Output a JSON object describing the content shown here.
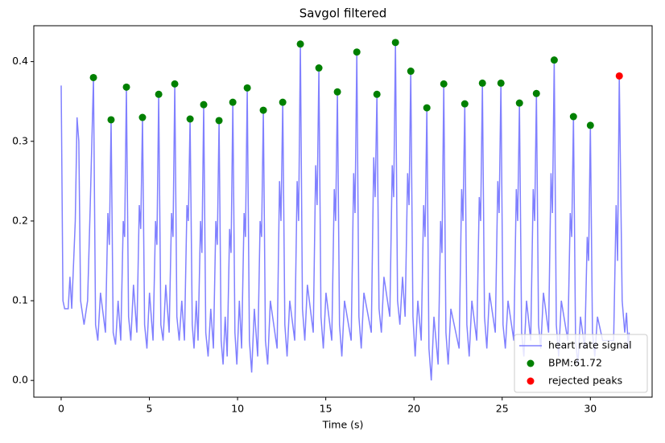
{
  "chart_data": {
    "type": "line",
    "title": "Savgol filtered",
    "xlabel": "Time (s)",
    "xlim": [
      -1.55,
      33.5
    ],
    "ylim": [
      -0.021,
      0.445
    ],
    "xticks": [
      0,
      5,
      10,
      15,
      20,
      25,
      30
    ],
    "yticks": [
      {
        "value": 0,
        "label": "0.0"
      },
      0.1,
      0.2,
      0.3,
      0.4
    ],
    "legend": "lower right",
    "series": [
      {
        "name": "heart rate signal",
        "type": "line",
        "color": "#8080ff",
        "x": [
          0,
          0.1,
          0.2,
          0.4,
          0.5,
          0.6,
          0.8,
          0.9,
          1.0,
          1.1,
          1.3,
          1.5,
          1.65,
          1.83,
          1.95,
          2.08,
          2.23,
          2.51,
          2.65,
          2.73,
          2.83,
          2.95,
          3.08,
          3.23,
          3.38,
          3.52,
          3.6,
          3.7,
          3.82,
          3.95,
          4.1,
          4.29,
          4.43,
          4.51,
          4.61,
          4.73,
          4.86,
          5.01,
          5.21,
          5.35,
          5.43,
          5.53,
          5.65,
          5.78,
          5.93,
          6.12,
          6.26,
          6.34,
          6.44,
          6.56,
          6.69,
          6.84,
          6.99,
          7.13,
          7.21,
          7.31,
          7.43,
          7.53,
          7.66,
          7.76,
          7.9,
          7.98,
          8.08,
          8.2,
          8.33,
          8.48,
          8.63,
          8.77,
          8.85,
          8.95,
          9.07,
          9.18,
          9.3,
          9.41,
          9.55,
          9.63,
          9.73,
          9.85,
          9.96,
          10.1,
          10.23,
          10.37,
          10.45,
          10.55,
          10.67,
          10.8,
          10.95,
          11.14,
          11.28,
          11.36,
          11.46,
          11.58,
          11.71,
          11.86,
          12.24,
          12.38,
          12.46,
          12.56,
          12.68,
          12.81,
          12.96,
          13.24,
          13.38,
          13.46,
          13.56,
          13.68,
          13.81,
          13.96,
          14.29,
          14.43,
          14.51,
          14.61,
          14.73,
          14.86,
          15.01,
          15.34,
          15.48,
          15.56,
          15.66,
          15.78,
          15.91,
          16.06,
          16.44,
          16.58,
          16.66,
          16.76,
          16.88,
          17.01,
          17.16,
          17.58,
          17.72,
          17.8,
          17.9,
          18.02,
          18.15,
          18.3,
          18.63,
          18.77,
          18.85,
          18.95,
          19.07,
          19.2,
          19.35,
          19.5,
          19.64,
          19.72,
          19.82,
          19.94,
          20.07,
          20.22,
          20.41,
          20.55,
          20.63,
          20.73,
          20.85,
          20.98,
          21.13,
          21.37,
          21.51,
          21.59,
          21.69,
          21.81,
          21.94,
          22.09,
          22.56,
          22.7,
          22.78,
          22.88,
          23.0,
          23.13,
          23.28,
          23.56,
          23.7,
          23.78,
          23.88,
          24.0,
          24.13,
          24.28,
          24.61,
          24.75,
          24.83,
          24.93,
          25.05,
          25.18,
          25.33,
          25.66,
          25.8,
          25.88,
          25.98,
          26.1,
          26.23,
          26.38,
          26.62,
          26.76,
          26.84,
          26.94,
          27.06,
          27.19,
          27.34,
          27.63,
          27.77,
          27.85,
          27.95,
          28.07,
          28.2,
          28.35,
          28.72,
          28.86,
          28.94,
          29.04,
          29.16,
          29.29,
          29.44,
          29.68,
          29.82,
          29.9,
          30.0,
          30.12,
          30.25,
          30.4,
          30.7,
          31.32,
          31.46,
          31.54,
          31.64,
          31.8,
          31.95,
          32.05,
          32.15,
          32.2
        ],
        "values": [
          0.37,
          0.1,
          0.09,
          0.09,
          0.13,
          0.09,
          0.2,
          0.33,
          0.3,
          0.1,
          0.07,
          0.1,
          0.22,
          0.38,
          0.07,
          0.05,
          0.11,
          0.06,
          0.21,
          0.17,
          0.327,
          0.06,
          0.045,
          0.1,
          0.05,
          0.2,
          0.18,
          0.368,
          0.08,
          0.05,
          0.12,
          0.06,
          0.22,
          0.19,
          0.33,
          0.07,
          0.04,
          0.11,
          0.05,
          0.2,
          0.17,
          0.359,
          0.07,
          0.05,
          0.12,
          0.06,
          0.21,
          0.18,
          0.372,
          0.08,
          0.05,
          0.1,
          0.05,
          0.22,
          0.2,
          0.328,
          0.07,
          0.04,
          0.1,
          0.05,
          0.2,
          0.16,
          0.346,
          0.06,
          0.03,
          0.09,
          0.04,
          0.2,
          0.17,
          0.326,
          0.05,
          0.02,
          0.08,
          0.03,
          0.19,
          0.16,
          0.349,
          0.06,
          0.02,
          0.1,
          0.04,
          0.21,
          0.18,
          0.367,
          0.05,
          0.01,
          0.09,
          0.03,
          0.2,
          0.18,
          0.339,
          0.05,
          0.02,
          0.1,
          0.04,
          0.25,
          0.2,
          0.349,
          0.07,
          0.03,
          0.1,
          0.05,
          0.25,
          0.2,
          0.422,
          0.09,
          0.05,
          0.12,
          0.06,
          0.27,
          0.22,
          0.392,
          0.08,
          0.04,
          0.11,
          0.05,
          0.24,
          0.2,
          0.362,
          0.07,
          0.03,
          0.1,
          0.05,
          0.26,
          0.21,
          0.412,
          0.08,
          0.04,
          0.11,
          0.06,
          0.28,
          0.23,
          0.359,
          0.09,
          0.06,
          0.13,
          0.08,
          0.27,
          0.23,
          0.424,
          0.1,
          0.07,
          0.13,
          0.08,
          0.26,
          0.22,
          0.388,
          0.08,
          0.03,
          0.1,
          0.05,
          0.22,
          0.18,
          0.342,
          0.04,
          0.0,
          0.08,
          0.02,
          0.2,
          0.16,
          0.372,
          0.06,
          0.02,
          0.09,
          0.04,
          0.24,
          0.2,
          0.347,
          0.07,
          0.03,
          0.1,
          0.05,
          0.23,
          0.2,
          0.373,
          0.08,
          0.04,
          0.11,
          0.06,
          0.25,
          0.21,
          0.373,
          0.07,
          0.04,
          0.1,
          0.05,
          0.24,
          0.2,
          0.348,
          0.06,
          0.03,
          0.1,
          0.05,
          0.24,
          0.2,
          0.36,
          0.07,
          0.04,
          0.11,
          0.06,
          0.26,
          0.21,
          0.402,
          0.07,
          0.03,
          0.1,
          0.05,
          0.21,
          0.18,
          0.331,
          0.05,
          0.02,
          0.08,
          0.04,
          0.18,
          0.15,
          0.32,
          0.06,
          0.03,
          0.08,
          0.05,
          0.05,
          0.22,
          0.15,
          0.382,
          0.1,
          0.06,
          0.085,
          0.04,
          0.06
        ]
      },
      {
        "name": "BPM:61.72",
        "type": "scatter",
        "color": "#008000",
        "x": [
          1.83,
          2.83,
          3.7,
          4.61,
          5.53,
          6.44,
          7.31,
          8.08,
          8.95,
          9.73,
          10.55,
          11.46,
          12.56,
          13.56,
          14.61,
          15.66,
          16.76,
          17.9,
          18.95,
          19.82,
          20.73,
          21.69,
          22.88,
          23.88,
          24.93,
          25.98,
          26.94,
          27.95,
          29.04,
          30.0
        ],
        "values": [
          0.38,
          0.327,
          0.368,
          0.33,
          0.359,
          0.372,
          0.328,
          0.346,
          0.326,
          0.349,
          0.367,
          0.339,
          0.349,
          0.422,
          0.392,
          0.362,
          0.412,
          0.359,
          0.424,
          0.388,
          0.342,
          0.372,
          0.347,
          0.373,
          0.373,
          0.348,
          0.36,
          0.402,
          0.331,
          0.32
        ]
      },
      {
        "name": "rejected peaks",
        "type": "scatter",
        "color": "#ff0000",
        "x": [
          31.64
        ],
        "values": [
          0.382
        ]
      }
    ]
  }
}
